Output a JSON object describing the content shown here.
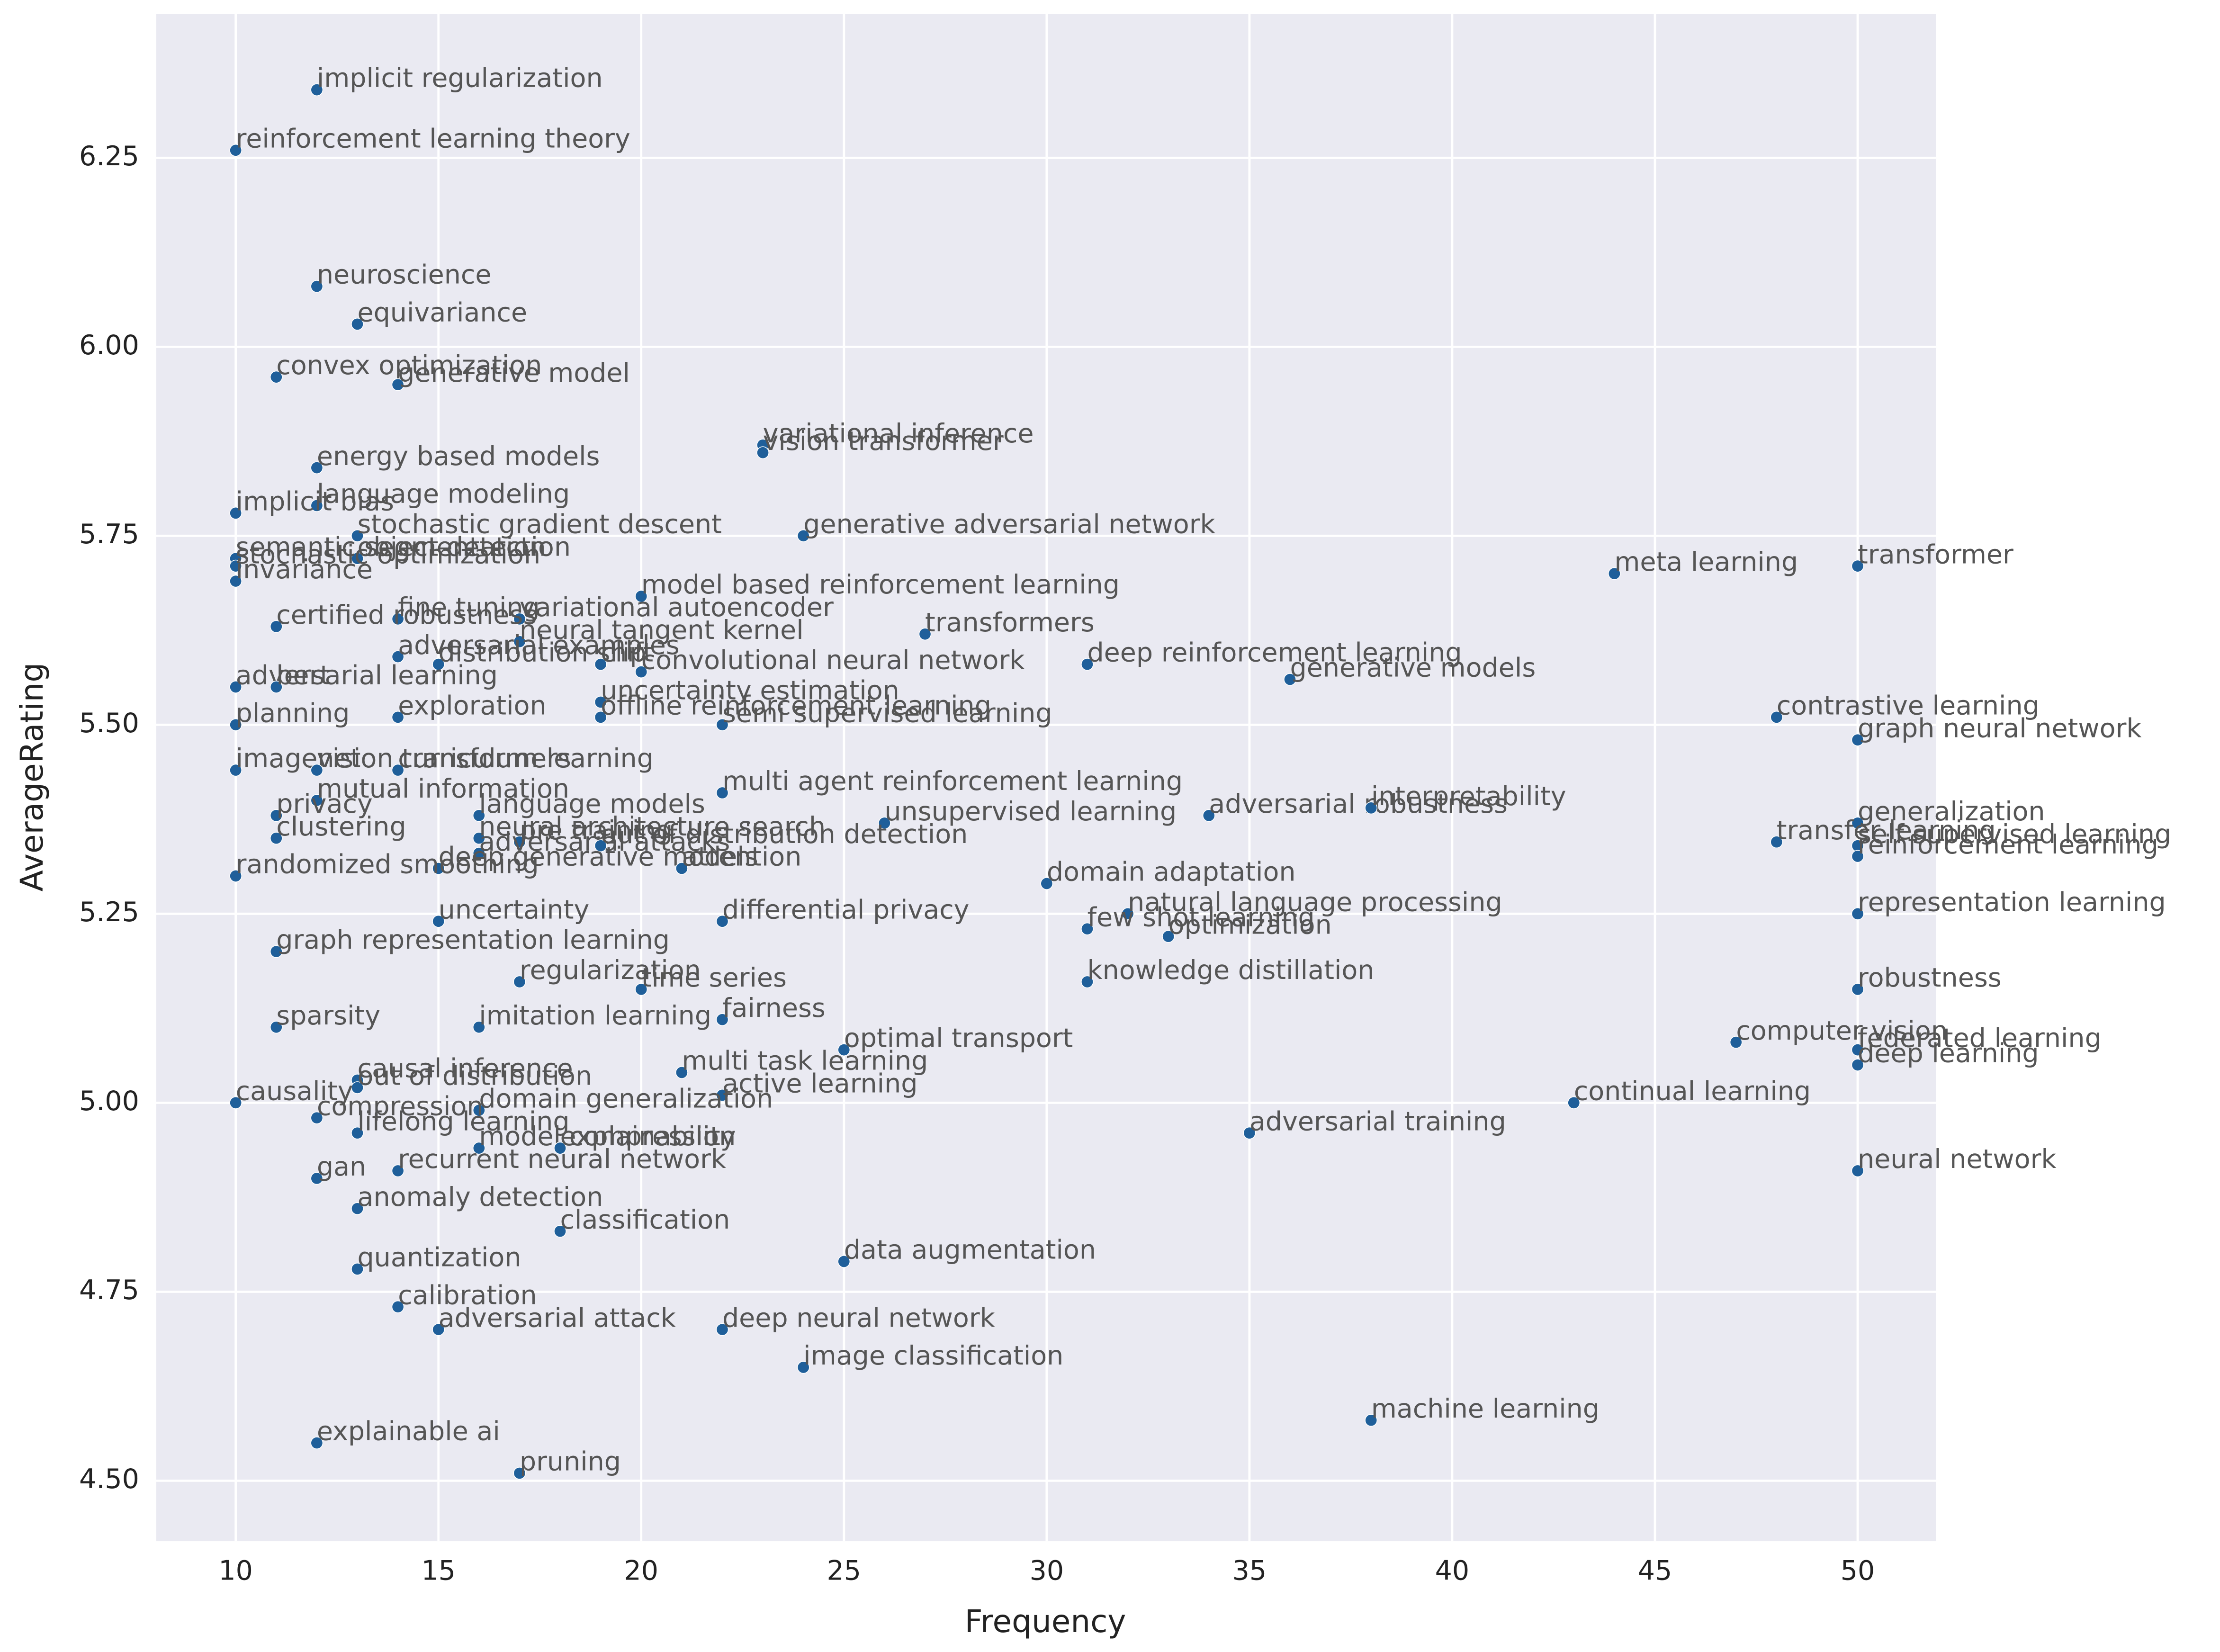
{
  "chart_data": {
    "type": "scatter",
    "xlabel": "Frequency",
    "ylabel": "AverageRating",
    "color": "#1f5f9a",
    "grid": true,
    "xlim": [
      8.04,
      51.93
    ],
    "ylim": [
      4.42,
      6.44
    ],
    "xticks": [
      10,
      15,
      20,
      25,
      30,
      35,
      40,
      45,
      50
    ],
    "yticks": [
      {
        "value": 4.5,
        "label": "4.50"
      },
      {
        "value": 4.75,
        "label": "4.75"
      },
      {
        "value": 5.0,
        "label": "5.00"
      },
      {
        "value": 5.25,
        "label": "5.25"
      },
      {
        "value": 5.5,
        "label": "5.50"
      },
      {
        "value": 5.75,
        "label": "5.75"
      },
      {
        "value": 6.0,
        "label": "6.00"
      },
      {
        "value": 6.25,
        "label": "6.25"
      }
    ],
    "labels": [
      "implicit regularization",
      "reinforcement learning theory",
      "neuroscience",
      "equivariance",
      "convex optimization",
      "generative model",
      "variational inference",
      "vision transformer",
      "energy based models",
      "language modeling",
      "implicit bias",
      "stochastic gradient descent",
      "generative adversarial network",
      "object detection",
      "semantic segmentation",
      "stochastic optimization",
      "invariance",
      "meta learning",
      "transformer",
      "model based reinforcement learning",
      "fine tuning",
      "variational autoencoder",
      "certified robustness",
      "neural tangent kernel",
      "transformers",
      "adversarial examples",
      "distribution shift",
      "clip",
      "convolutional neural network",
      "deep reinforcement learning",
      "generative models",
      "adversarial learning",
      "bert",
      "uncertainty estimation",
      "offline reinforcement learning",
      "semi supervised learning",
      "planning",
      "exploration",
      "contrastive learning",
      "graph neural network",
      "imagenet",
      "vision transformers",
      "curriculum learning",
      "mutual information",
      "multi agent reinforcement learning",
      "privacy",
      "language models",
      "unsupervised learning",
      "adversarial robustness",
      "interpretability",
      "generalization",
      "clustering",
      "neural architecture search",
      "pre training",
      "adversarial attacks",
      "out of distribution detection",
      "transfer learning",
      "self supervised learning",
      "reinforcement learning",
      "deep generative models",
      "attention",
      "randomized smoothing",
      "domain adaptation",
      "natural language processing",
      "representation learning",
      "uncertainty",
      "differential privacy",
      "few shot learning",
      "optimization",
      "graph representation learning",
      "knowledge distillation",
      "regularization",
      "time series",
      "robustness",
      "fairness",
      "imitation learning",
      "sparsity",
      "computer vision",
      "optimal transport",
      "federated learning",
      "multi task learning",
      "deep learning",
      "causal inference",
      "out of distribution",
      "active learning",
      "continual learning",
      "causality",
      "domain generalization",
      "compression",
      "lifelong learning",
      "adversarial training",
      "model compression",
      "explainability",
      "recurrent neural network",
      "neural network",
      "gan",
      "anomaly detection",
      "classification",
      "data augmentation",
      "quantization",
      "calibration",
      "adversarial attack",
      "deep neural network",
      "image classification",
      "machine learning",
      "explainable ai",
      "pruning"
    ],
    "x": [
      12,
      10,
      12,
      13,
      11,
      14,
      23,
      23,
      12,
      12,
      10,
      13,
      24,
      13,
      10,
      10,
      10,
      44,
      50,
      20,
      14,
      17,
      11,
      17,
      27,
      14,
      15,
      19,
      20,
      31,
      36,
      10,
      11,
      19,
      19,
      22,
      10,
      14,
      48,
      50,
      10,
      12,
      14,
      12,
      22,
      11,
      16,
      26,
      34,
      38,
      50,
      11,
      16,
      17,
      16,
      19,
      48,
      50,
      50,
      15,
      21,
      10,
      30,
      32,
      50,
      15,
      22,
      31,
      33,
      11,
      31,
      17,
      20,
      50,
      22,
      16,
      11,
      47,
      25,
      50,
      21,
      50,
      13,
      13,
      22,
      43,
      10,
      16,
      12,
      13,
      35,
      16,
      18,
      14,
      50,
      12,
      13,
      18,
      25,
      13,
      14,
      15,
      22,
      24,
      38,
      12,
      17
    ],
    "values": [
      6.34,
      6.26,
      6.08,
      6.03,
      5.96,
      5.95,
      5.87,
      5.86,
      5.84,
      5.79,
      5.78,
      5.75,
      5.75,
      5.72,
      5.72,
      5.71,
      5.69,
      5.7,
      5.71,
      5.67,
      5.64,
      5.64,
      5.63,
      5.61,
      5.62,
      5.59,
      5.58,
      5.58,
      5.57,
      5.58,
      5.56,
      5.55,
      5.55,
      5.53,
      5.51,
      5.5,
      5.5,
      5.51,
      5.51,
      5.48,
      5.44,
      5.44,
      5.44,
      5.4,
      5.41,
      5.38,
      5.38,
      5.37,
      5.38,
      5.39,
      5.37,
      5.35,
      5.35,
      5.345,
      5.33,
      5.34,
      5.345,
      5.34,
      5.326,
      5.31,
      5.31,
      5.3,
      5.29,
      5.25,
      5.25,
      5.24,
      5.24,
      5.23,
      5.22,
      5.2,
      5.16,
      5.16,
      5.15,
      5.15,
      5.11,
      5.1,
      5.1,
      5.08,
      5.07,
      5.07,
      5.04,
      5.05,
      5.03,
      5.02,
      5.01,
      5.0,
      5.0,
      4.99,
      4.98,
      4.96,
      4.96,
      4.94,
      4.94,
      4.91,
      4.91,
      4.9,
      4.86,
      4.83,
      4.79,
      4.78,
      4.73,
      4.7,
      4.7,
      4.65,
      4.58,
      4.55,
      4.51
    ]
  }
}
